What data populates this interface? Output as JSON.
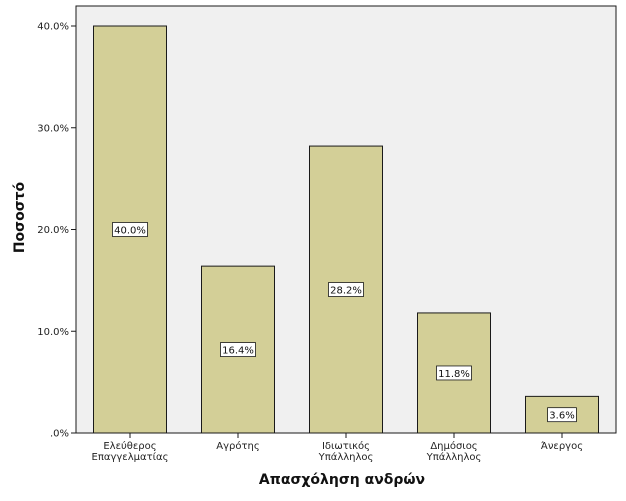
{
  "chart_data": {
    "type": "bar",
    "categories": [
      [
        "Ελεύθερος",
        "Επαγγελματίας"
      ],
      [
        "Αγρότης"
      ],
      [
        "Ιδιωτικός",
        "Υπάλληλος"
      ],
      [
        "Δημόσιος",
        "Υπάλληλος"
      ],
      [
        "Άνεργος"
      ]
    ],
    "values": [
      40.0,
      16.4,
      28.2,
      11.8,
      3.6
    ],
    "data_labels": [
      "40.0%",
      "16.4%",
      "28.2%",
      "11.8%",
      "3.6%"
    ],
    "title": "",
    "xlabel": "Απασχόληση ανδρών",
    "ylabel": "Ποσοστό",
    "ylim": [
      0,
      40
    ],
    "yticks": [
      0,
      10,
      20,
      30,
      40
    ],
    "ytick_labels": [
      ".0%",
      "10.0%",
      "20.0%",
      "30.0%",
      "40.0%"
    ],
    "grid": false,
    "colors": {
      "bar_fill": "#d3cf97",
      "bar_stroke": "#1a1a1a",
      "plot_background": "#f0f0f0",
      "axis": "#1a1a1a"
    }
  }
}
